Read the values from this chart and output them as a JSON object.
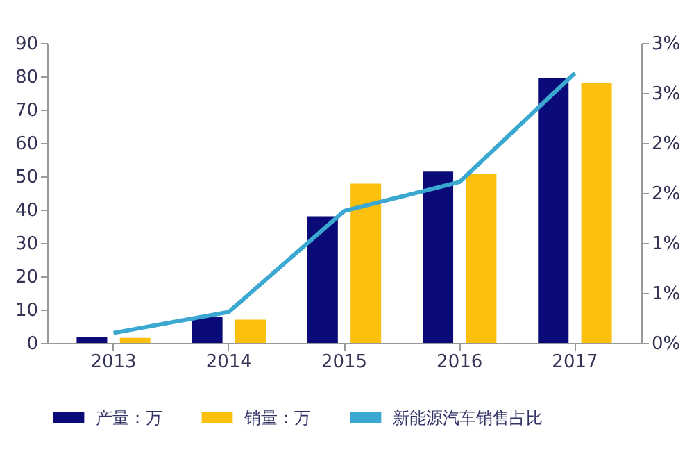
{
  "chart_data": {
    "type": "bar",
    "categories": [
      "2013",
      "2014",
      "2015",
      "2016",
      "2017"
    ],
    "series": [
      {
        "name": "产量：万",
        "color": "#0a0a78",
        "values": [
          1.7,
          7.8,
          38,
          51.4,
          79.6
        ]
      },
      {
        "name": "销量：万",
        "color": "#fbbf0e",
        "values": [
          1.5,
          7,
          47.8,
          50.7,
          78
        ]
      },
      {
        "name": "新能源汽车销售占比",
        "type": "line",
        "axis": "y2",
        "color": "#3aa8d0",
        "values": [
          0.1,
          0.31,
          1.32,
          1.61,
          2.7
        ]
      }
    ],
    "ylim": [
      0,
      90
    ],
    "yticks": [
      0,
      10,
      20,
      30,
      40,
      50,
      60,
      70,
      80,
      90
    ],
    "y2lim": [
      0,
      3
    ],
    "y2ticks": [
      {
        "value": 0,
        "label": "0%"
      },
      {
        "value": 0.5,
        "label": "1%"
      },
      {
        "value": 1,
        "label": "1%"
      },
      {
        "value": 1.5,
        "label": "2%"
      },
      {
        "value": 2,
        "label": "2%"
      },
      {
        "value": 2.5,
        "label": "3%"
      },
      {
        "value": 3,
        "label": "3%"
      }
    ],
    "grid": false,
    "legend": "bottom",
    "marker": "none",
    "line_style": "solid"
  }
}
